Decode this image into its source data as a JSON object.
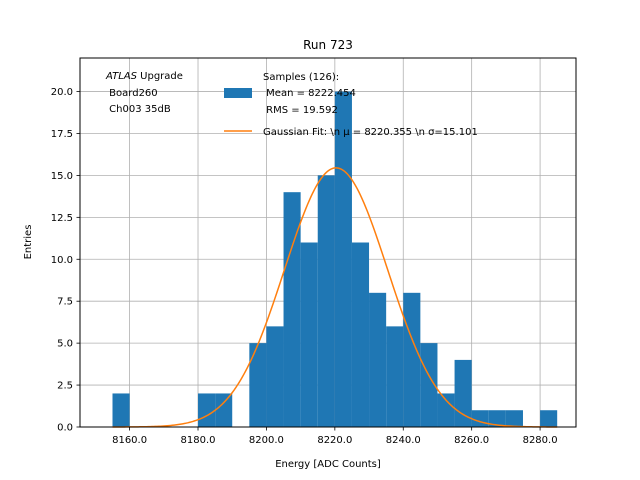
{
  "chart_data": {
    "type": "bar",
    "title": "Run 723",
    "xlabel": "Energy [ADC Counts]",
    "ylabel": "Entries",
    "xlim": [
      8145.5,
      8290.5
    ],
    "ylim": [
      0,
      22
    ],
    "x_ticks": [
      8160,
      8180,
      8200,
      8220,
      8240,
      8260,
      8280
    ],
    "x_tick_labels": [
      "8160.0",
      "8180.0",
      "8200.0",
      "8220.0",
      "8240.0",
      "8260.0",
      "8280.0"
    ],
    "y_ticks": [
      0,
      2.5,
      5,
      7.5,
      10,
      12.5,
      15,
      17.5,
      20
    ],
    "y_tick_labels": [
      "0.0",
      "2.5",
      "5.0",
      "7.5",
      "10.0",
      "12.5",
      "15.0",
      "17.5",
      "20.0"
    ],
    "grid": true,
    "bin_width": 5,
    "bins": [
      {
        "x": 8155,
        "value": 2
      },
      {
        "x": 8180,
        "value": 2
      },
      {
        "x": 8185,
        "value": 2
      },
      {
        "x": 8195,
        "value": 5
      },
      {
        "x": 8200,
        "value": 6
      },
      {
        "x": 8205,
        "value": 14
      },
      {
        "x": 8210,
        "value": 11
      },
      {
        "x": 8215,
        "value": 15
      },
      {
        "x": 8220,
        "value": 20
      },
      {
        "x": 8225,
        "value": 11
      },
      {
        "x": 8230,
        "value": 8
      },
      {
        "x": 8235,
        "value": 6
      },
      {
        "x": 8240,
        "value": 8
      },
      {
        "x": 8245,
        "value": 5
      },
      {
        "x": 8250,
        "value": 2
      },
      {
        "x": 8255,
        "value": 4
      },
      {
        "x": 8260,
        "value": 1
      },
      {
        "x": 8265,
        "value": 1
      },
      {
        "x": 8270,
        "value": 1
      },
      {
        "x": 8280,
        "value": 1
      }
    ],
    "bar_color": "#1f77b4",
    "fit": {
      "type": "gaussian",
      "mu": 8220.355,
      "sigma": 15.101,
      "amplitude": 15.45,
      "x_range": [
        8155,
        8285
      ],
      "color": "#ff7f0e"
    },
    "legend": {
      "placement": "top-center",
      "entries": [
        {
          "label_lines": [
            "Samples (126):",
            " Mean = 8222.454",
            " RMS = 19.592"
          ],
          "kind": "patch",
          "color": "#1f77b4"
        },
        {
          "label_lines": [
            "Gaussian Fit: \\n μ = 8220.355 \\n σ=15.101"
          ],
          "kind": "line",
          "color": "#ff7f0e"
        }
      ]
    },
    "annotation": {
      "line1_italic": "ATLAS",
      "line1_rest": " Upgrade",
      "line2": " Board260",
      "line3": " Ch003 35dB"
    }
  }
}
